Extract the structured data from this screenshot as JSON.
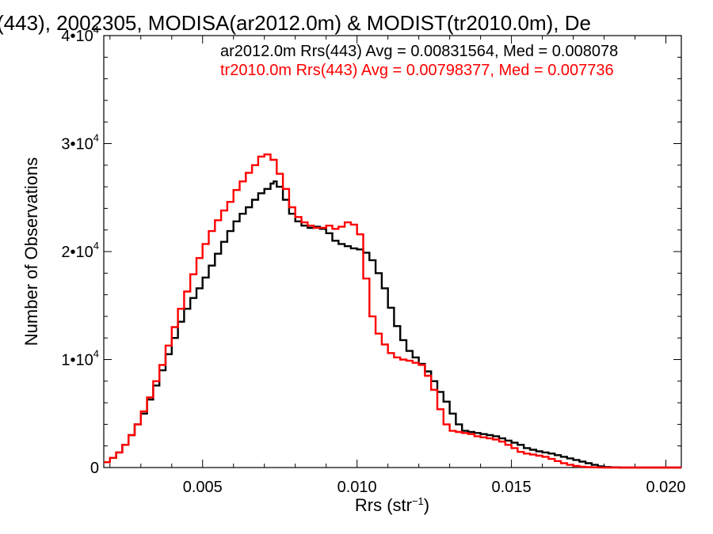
{
  "chart_data": {
    "type": "line",
    "title": "(443), 2002305, MODISA(ar2012.0m) & MODIST(tr2010.0m), De",
    "xlabel_base": "Rrs (str",
    "xlabel_sup": "−1",
    "xlabel_tail": ")",
    "ylabel": "Number of Observations",
    "xlim": [
      0.0018,
      0.0205
    ],
    "ylim": [
      0,
      40000
    ],
    "x_ticks": [
      {
        "value": 0.005,
        "label": "0.005"
      },
      {
        "value": 0.01,
        "label": "0.010"
      },
      {
        "value": 0.015,
        "label": "0.015"
      },
      {
        "value": 0.02,
        "label": "0.020"
      }
    ],
    "y_ticks": [
      {
        "value": 0,
        "base": "0",
        "exp": ""
      },
      {
        "value": 10000,
        "base": "1•10",
        "exp": "4"
      },
      {
        "value": 20000,
        "base": "2•10",
        "exp": "4"
      },
      {
        "value": 30000,
        "base": "3•10",
        "exp": "4"
      },
      {
        "value": 40000,
        "base": "4•10",
        "exp": "4"
      }
    ],
    "grid": false,
    "legend_position": "top-right",
    "legend": [
      "ar2012.0m Rrs(443) Avg = 0.00831564, Med = 0.008078",
      "tr2010.0m Rrs(443) Avg = 0.00798377, Med = 0.007736"
    ],
    "colors": [
      "#000000",
      "#ff0000"
    ],
    "series": [
      {
        "x": [
          0.0018,
          0.002,
          0.0022,
          0.0024,
          0.0026,
          0.0028,
          0.003,
          0.0032,
          0.0034,
          0.0036,
          0.0038,
          0.004,
          0.0042,
          0.0044,
          0.0046,
          0.0048,
          0.005,
          0.0052,
          0.0054,
          0.0056,
          0.0058,
          0.006,
          0.0062,
          0.0064,
          0.0066,
          0.0068,
          0.007,
          0.0072,
          0.0073,
          0.0074,
          0.0076,
          0.0078,
          0.008,
          0.0082,
          0.0084,
          0.0086,
          0.0088,
          0.009,
          0.0092,
          0.0094,
          0.0096,
          0.0098,
          0.01,
          0.0102,
          0.0104,
          0.0106,
          0.0108,
          0.011,
          0.0112,
          0.0114,
          0.0116,
          0.0118,
          0.012,
          0.0122,
          0.0124,
          0.0126,
          0.0128,
          0.013,
          0.0132,
          0.0134,
          0.0136,
          0.0138,
          0.014,
          0.0142,
          0.0144,
          0.0146,
          0.0148,
          0.015,
          0.0152,
          0.0154,
          0.0156,
          0.0158,
          0.016,
          0.0162,
          0.0164,
          0.0166,
          0.0168,
          0.017,
          0.0172,
          0.0174,
          0.0176,
          0.0178,
          0.018,
          0.0182,
          0.0185,
          0.019,
          0.0195,
          0.02,
          0.0205
        ],
        "y": [
          500,
          900,
          1400,
          2100,
          3000,
          4000,
          5000,
          6300,
          7600,
          9000,
          10500,
          12000,
          13500,
          14700,
          15700,
          16600,
          17600,
          18700,
          19800,
          20900,
          21900,
          22800,
          23500,
          24100,
          24800,
          25400,
          25800,
          26300,
          26500,
          26000,
          24800,
          23500,
          22800,
          22400,
          22200,
          22300,
          22100,
          21700,
          21000,
          20700,
          20500,
          20300,
          20200,
          19900,
          19200,
          18000,
          16600,
          14800,
          13100,
          11800,
          10800,
          10200,
          9600,
          8900,
          8000,
          7000,
          6100,
          5000,
          4000,
          3400,
          3300,
          3200,
          3100,
          3000,
          2900,
          2700,
          2500,
          2300,
          2100,
          1800,
          1650,
          1500,
          1400,
          1300,
          1150,
          1000,
          850,
          700,
          550,
          400,
          250,
          120,
          50,
          20,
          0,
          0,
          0,
          0,
          0
        ]
      },
      {
        "x": [
          0.0018,
          0.002,
          0.0022,
          0.0024,
          0.0026,
          0.0028,
          0.003,
          0.0032,
          0.0034,
          0.0036,
          0.0038,
          0.004,
          0.0042,
          0.0044,
          0.0046,
          0.0048,
          0.005,
          0.0052,
          0.0054,
          0.0056,
          0.0058,
          0.006,
          0.0062,
          0.0064,
          0.0066,
          0.0068,
          0.007,
          0.0072,
          0.0074,
          0.0076,
          0.0078,
          0.008,
          0.0082,
          0.0084,
          0.0086,
          0.0088,
          0.009,
          0.0092,
          0.0094,
          0.0096,
          0.0098,
          0.01,
          0.0102,
          0.0104,
          0.0106,
          0.0108,
          0.011,
          0.0112,
          0.0114,
          0.0116,
          0.0118,
          0.012,
          0.0122,
          0.0124,
          0.0126,
          0.0128,
          0.013,
          0.0132,
          0.0134,
          0.0136,
          0.0138,
          0.014,
          0.0142,
          0.0144,
          0.0146,
          0.0148,
          0.015,
          0.0152,
          0.0154,
          0.0156,
          0.0158,
          0.016,
          0.0162,
          0.0164,
          0.0166,
          0.0168,
          0.017,
          0.0172,
          0.0174,
          0.0176,
          0.0178,
          0.018,
          0.0185,
          0.019,
          0.0195,
          0.02,
          0.0205
        ],
        "y": [
          500,
          900,
          1400,
          2100,
          3000,
          4000,
          5200,
          6500,
          8000,
          9500,
          11300,
          13000,
          14700,
          16300,
          17900,
          19400,
          20700,
          21900,
          22900,
          23800,
          24600,
          25700,
          26500,
          27300,
          28000,
          28800,
          29000,
          28500,
          27200,
          25800,
          24100,
          23200,
          22700,
          22400,
          22200,
          22200,
          22400,
          22100,
          22300,
          22700,
          22500,
          21600,
          17500,
          14000,
          12400,
          11400,
          10600,
          10200,
          10000,
          9900,
          9700,
          9500,
          8500,
          7200,
          5400,
          4000,
          3400,
          3300,
          3200,
          3100,
          2900,
          2800,
          2700,
          2600,
          2400,
          2100,
          1800,
          1450,
          1300,
          1200,
          1100,
          1000,
          800,
          600,
          400,
          250,
          150,
          80,
          40,
          20,
          10,
          0,
          0,
          0,
          0,
          0,
          0
        ]
      }
    ]
  }
}
